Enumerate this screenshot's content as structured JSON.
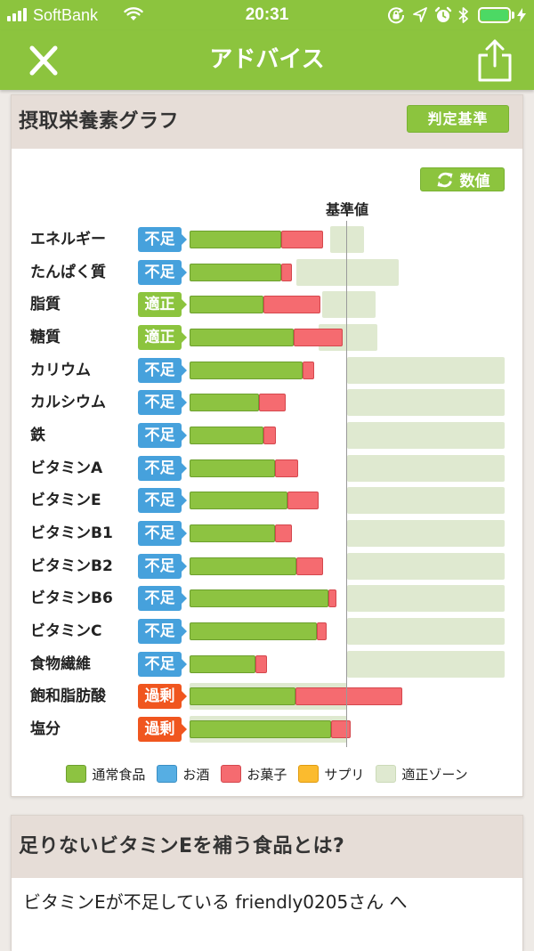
{
  "status_bar": {
    "carrier": "SoftBank",
    "time": "20:31",
    "icons": [
      "signal-icon",
      "wifi-icon",
      "rotation-lock-icon",
      "location-icon",
      "alarm-icon",
      "bluetooth-icon",
      "battery-icon",
      "charging-icon"
    ],
    "battery_fill_color": "#4cd964",
    "battery_level": 1.0
  },
  "nav": {
    "title": "アドバイス",
    "left_icon": "close-icon",
    "right_icon": "share-icon"
  },
  "colors": {
    "brand_green": "#8cc43e",
    "card_header_bg": "#e6ddd7",
    "page_bg": "#eeeae6",
    "ideal_zone": "#dfe9d0",
    "ideal_zone_border": "#cbdab8",
    "reference_line": "#9a9a9a",
    "status": {
      "不足": "#46a1dc",
      "適正": "#8cc43e",
      "過剰": "#f0561f"
    }
  },
  "graph_card": {
    "title": "摂取栄養素グラフ",
    "criteria_button_label": "判定基準",
    "values_button_label": "数値",
    "values_button_icon": "refresh-icon",
    "reference_label": "基準値",
    "chart_data": {
      "type": "bar",
      "orientation": "horizontal",
      "stacked": true,
      "xlim": [
        0,
        200
      ],
      "reference": 100,
      "categories": [
        "エネルギー",
        "たんぱく質",
        "脂質",
        "糖質",
        "カリウム",
        "カルシウム",
        "鉄",
        "ビタミンA",
        "ビタミンE",
        "ビタミンB1",
        "ビタミンB2",
        "ビタミンB6",
        "ビタミンC",
        "食物繊維",
        "飽和脂肪酸",
        "塩分"
      ],
      "status": [
        "不足",
        "不足",
        "適正",
        "適正",
        "不足",
        "不足",
        "不足",
        "不足",
        "不足",
        "不足",
        "不足",
        "不足",
        "不足",
        "不足",
        "過剰",
        "過剰"
      ],
      "series": [
        {
          "name": "通常食品",
          "color": "#8dc341",
          "border": "#6c9f2e",
          "values": [
            58,
            58,
            47,
            66,
            72,
            44,
            47,
            54,
            62,
            54,
            68,
            88,
            81,
            42,
            67,
            90
          ]
        },
        {
          "name": "お酒",
          "color": "#56aee3",
          "border": "#3a8fc4",
          "values": [
            0,
            0,
            0,
            0,
            0,
            0,
            0,
            0,
            0,
            0,
            0,
            0,
            0,
            0,
            0,
            0
          ]
        },
        {
          "name": "お菓子",
          "color": "#f56b70",
          "border": "#d4474d",
          "values": [
            27,
            7,
            36,
            31,
            7,
            17,
            8,
            15,
            20,
            11,
            17,
            5,
            6,
            7,
            68,
            12
          ]
        },
        {
          "name": "サプリ",
          "color": "#fbbb2e",
          "border": "#e09b10",
          "values": [
            0,
            0,
            0,
            0,
            0,
            0,
            0,
            0,
            0,
            0,
            0,
            0,
            0,
            0,
            0,
            0
          ]
        }
      ],
      "zone_label": "適正ゾーン",
      "ideal_zone": [
        [
          89,
          111
        ],
        [
          68,
          133
        ],
        [
          84,
          118
        ],
        [
          82,
          119
        ],
        [
          100,
          200
        ],
        [
          100,
          200
        ],
        [
          100,
          200
        ],
        [
          100,
          200
        ],
        [
          100,
          200
        ],
        [
          100,
          200
        ],
        [
          100,
          200
        ],
        [
          100,
          200
        ],
        [
          100,
          200
        ],
        [
          100,
          200
        ],
        [
          0,
          100
        ],
        [
          0,
          100
        ]
      ],
      "legend_position": "bottom"
    }
  },
  "advice_card": {
    "title": "足りないビタミンEを補う食品とは?",
    "message": "ビタミンEが不足している friendly0205さん へ"
  }
}
